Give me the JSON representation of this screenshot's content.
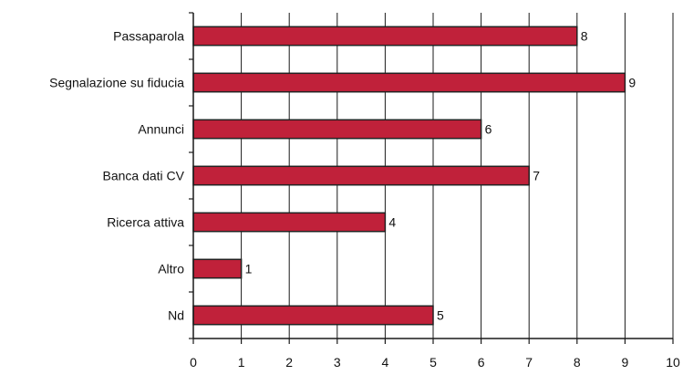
{
  "chart_data": {
    "type": "bar",
    "orientation": "horizontal",
    "categories": [
      "Passaparola",
      "Segnalazione su fiducia",
      "Annunci",
      "Banca dati CV",
      "Ricerca attiva",
      "Altro",
      "Nd"
    ],
    "values": [
      8,
      9,
      6,
      7,
      4,
      1,
      5
    ],
    "xlim": [
      0,
      10
    ],
    "x_ticks": [
      "0",
      "1",
      "2",
      "3",
      "4",
      "5",
      "6",
      "7",
      "8",
      "9",
      "10"
    ],
    "data_labels": [
      "8",
      "9",
      "6",
      "7",
      "4",
      "1",
      "5"
    ],
    "grid": true,
    "legend": "none",
    "colors": {
      "bar": "#c0213a",
      "grid": "#1a1a1a",
      "background": "#ffffff"
    }
  }
}
